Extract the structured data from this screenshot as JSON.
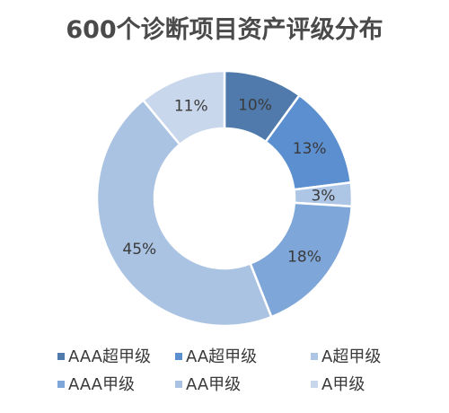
{
  "chart_data": {
    "type": "pie",
    "variant": "donut",
    "title": "600个诊断项目资产评级分布",
    "categories": [
      "AAA超甲级",
      "AA超甲级",
      "A超甲级",
      "AAA甲级",
      "AA甲级",
      "A甲级"
    ],
    "values": [
      10,
      13,
      3,
      18,
      45,
      11
    ],
    "data_labels": [
      "10%",
      "13%",
      "3%",
      "18%",
      "45%",
      "11%"
    ],
    "colors": [
      "#4f7aab",
      "#5b8fcf",
      "#aec6e6",
      "#7fa6d8",
      "#abc3e3",
      "#c9d7ec"
    ],
    "legend_position": "bottom",
    "grid": false
  }
}
